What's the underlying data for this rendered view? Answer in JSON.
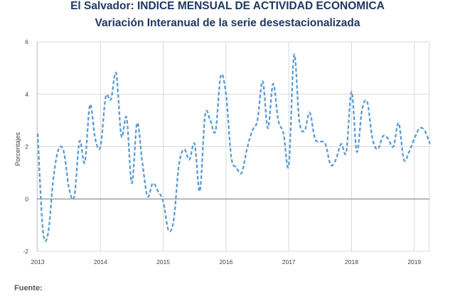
{
  "title": "El Salvador: INDICE MENSUAL DE ACTIVIDAD ECONOMICA",
  "subtitle": "Variación Interanual de la serie desestacionalizada",
  "footer": "Fuente:",
  "chart_data": {
    "type": "line",
    "title": "El Salvador: INDICE MENSUAL DE ACTIVIDAD ECONOMICA",
    "subtitle": "Variación Interanual de la serie desestacionalizada",
    "xlabel": "",
    "ylabel": "Porcentajes",
    "ylim": [
      -2,
      6
    ],
    "yticks": [
      -2,
      0,
      2,
      4,
      6
    ],
    "xticks": [
      "2013",
      "2014",
      "2015",
      "2016",
      "2017",
      "2018",
      "2019"
    ],
    "grid": true,
    "line_color": "#5B9BD5",
    "line_style": "dashed",
    "series": [
      {
        "name": "",
        "x_start": "2013-01",
        "frequency": "monthly",
        "values": [
          2.5,
          -1.2,
          -1.3,
          0.8,
          1.9,
          1.8,
          0.4,
          0.1,
          2.2,
          1.4,
          3.6,
          2.3,
          2.0,
          3.9,
          3.8,
          4.8,
          2.4,
          3.1,
          0.6,
          2.9,
          1.4,
          0.1,
          0.6,
          0.3,
          -0.1,
          -1.2,
          -0.8,
          1.3,
          1.9,
          1.5,
          2.1,
          0.3,
          3.2,
          3.0,
          2.6,
          4.7,
          4.0,
          1.6,
          1.2,
          1.0,
          1.9,
          2.6,
          3.0,
          4.5,
          2.7,
          4.4,
          3.0,
          2.5,
          1.3,
          5.5,
          3.0,
          2.6,
          3.3,
          2.3,
          2.2,
          2.1,
          1.3,
          1.5,
          2.1,
          1.8,
          4.1,
          1.8,
          3.4,
          3.7,
          2.3,
          1.9,
          2.4,
          2.3,
          2.0,
          2.9,
          1.5,
          1.8,
          2.3,
          2.7,
          2.6,
          2.1
        ]
      }
    ]
  }
}
